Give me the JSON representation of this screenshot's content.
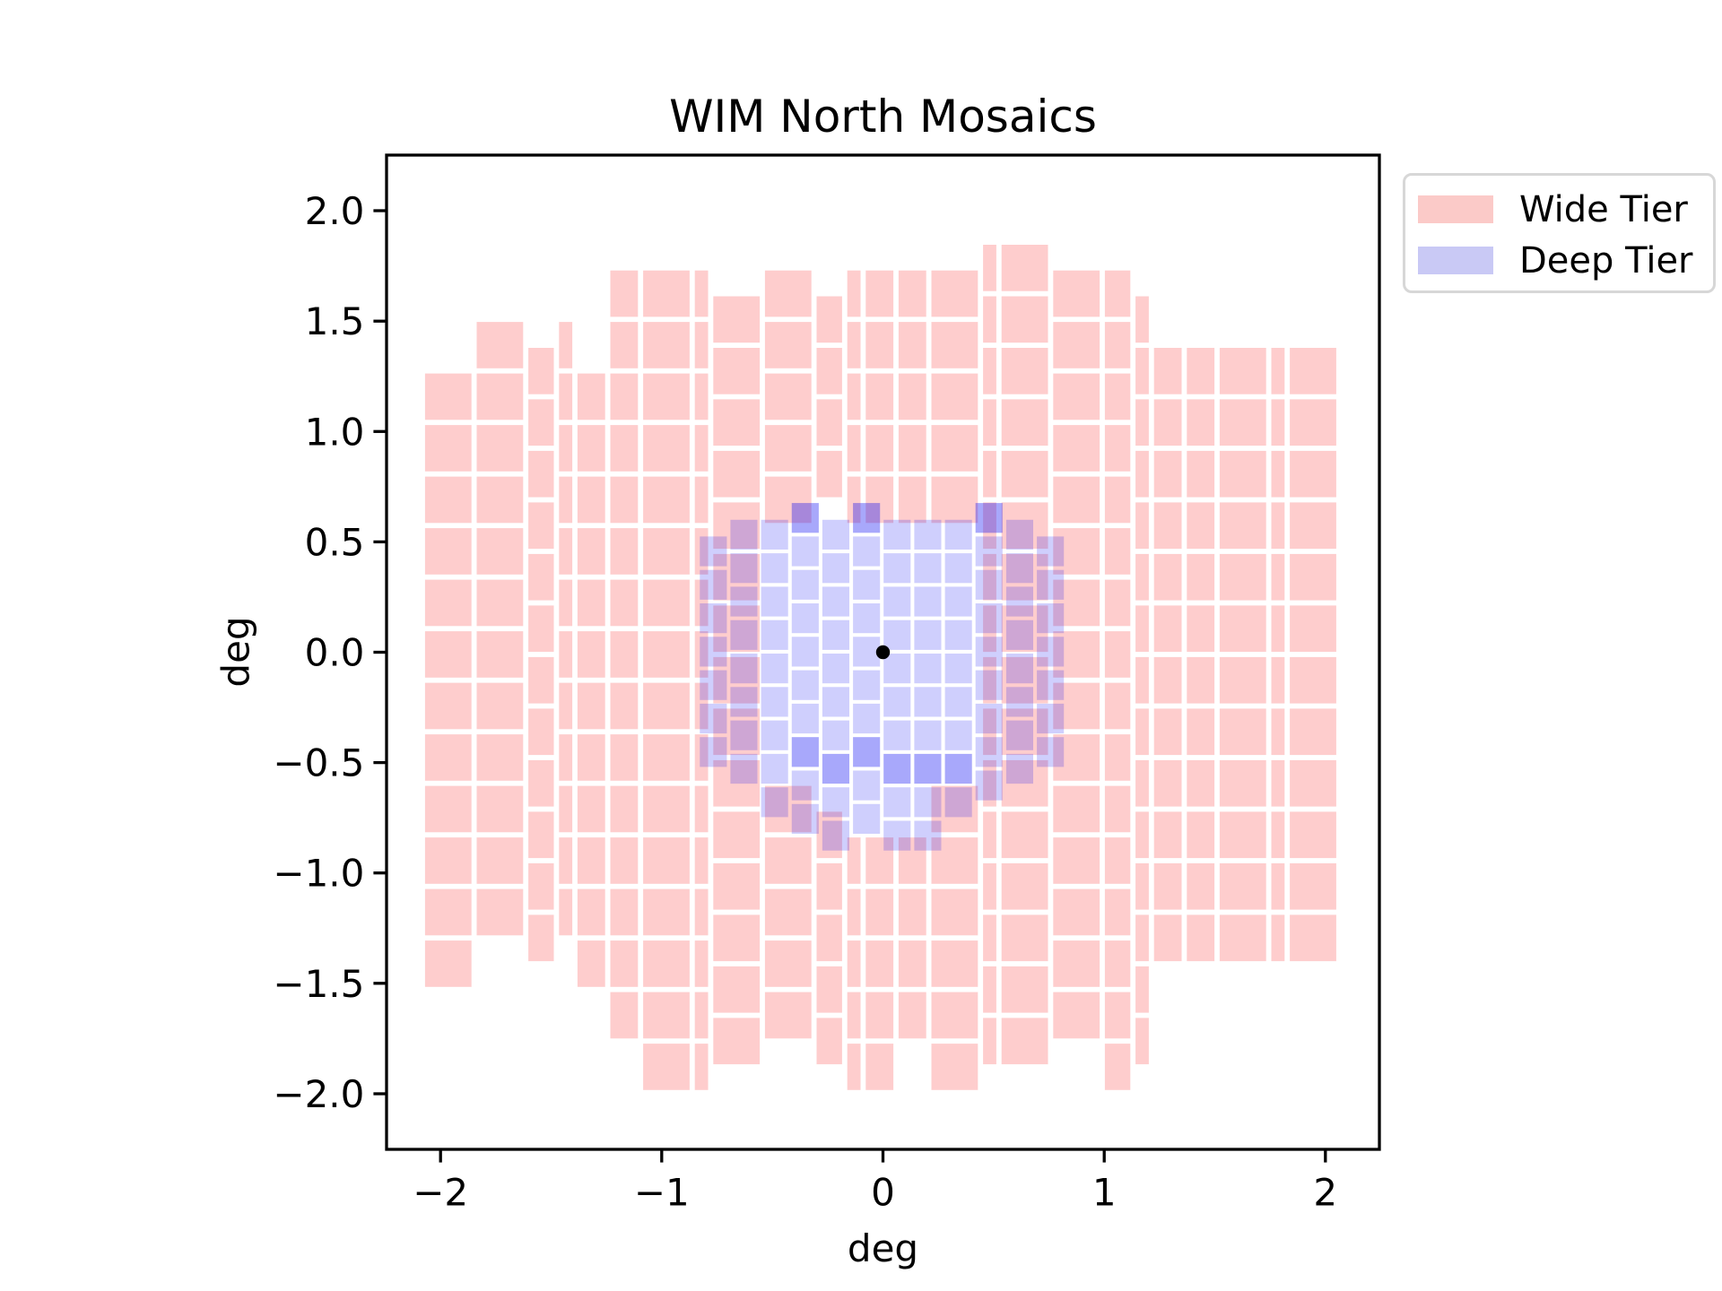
{
  "title": "WIM North Mosaics",
  "axes": {
    "xlabel": "deg",
    "ylabel": "deg",
    "xlim": [
      -2.244,
      2.244
    ],
    "ylim": [
      -2.252,
      2.252
    ],
    "xticks": [
      {
        "value": -2,
        "label": "−2"
      },
      {
        "value": -1,
        "label": "−1"
      },
      {
        "value": 0,
        "label": "0"
      },
      {
        "value": 1,
        "label": "1"
      },
      {
        "value": 2,
        "label": "2"
      }
    ],
    "yticks": [
      {
        "value": 2.0,
        "label": "2.0"
      },
      {
        "value": 1.5,
        "label": "1.5"
      },
      {
        "value": 1.0,
        "label": "1.0"
      },
      {
        "value": 0.5,
        "label": "0.5"
      },
      {
        "value": 0.0,
        "label": "0.0"
      },
      {
        "value": -0.5,
        "label": "−0.5"
      },
      {
        "value": -1.0,
        "label": "−1.0"
      },
      {
        "value": -1.5,
        "label": "−1.5"
      },
      {
        "value": -2.0,
        "label": "−2.0"
      }
    ]
  },
  "legend": {
    "items": [
      {
        "label": "Wide Tier",
        "swatch": "#fbcac8"
      },
      {
        "label": "Deep Tier",
        "swatch": "#c9c9f5"
      }
    ]
  },
  "chart_data": {
    "type": "heatmap",
    "description": "Sky-coverage mosaic map of survey pointings. Semi-transparent pink tiles show the Wide Tier footprint (roughly x,y in [-2.07,2.07] x [-1.9,1.8] deg with scalloped tile edges and a central gap), semi-transparent blue tiles show the Deep Tier footprint (x in [-0.83,0.83], y from about -0.95 up to 0.72 deg with a tapered bottom). Overlap of blue over pink renders purple; double blue coverage renders vivid blue stripes near y=-0.5.",
    "title": "WIM North Mosaics",
    "xlabel": "deg",
    "ylabel": "deg",
    "center_marker": {
      "x": 0,
      "y": 0,
      "color": "#000000",
      "radius_px": 7.7
    },
    "wide_tier": {
      "label": "Wide Tier",
      "fill": "rgba(250,25,25,0.215)",
      "x_start": -2.07,
      "x_end": 2.05,
      "column_patterns": [
        [
          0.21,
          0.21,
          0.115,
          0.06
        ],
        [
          0.125,
          0.125,
          0.21,
          0.06
        ]
      ],
      "gap": 0.0235,
      "tile_height": 0.21,
      "row_pitch": 0.2335,
      "row_origin": -2.1,
      "jitter_amp": 0.16,
      "half_phase": 0.117,
      "inner_half_width": 1.26,
      "top_inner": 1.84,
      "top_outer": 1.47,
      "bottom_inner": -1.94,
      "bottom_outer": -1.52,
      "hole": {
        "half_width": 0.44,
        "y_min": -0.6,
        "y_max": 0.55,
        "ear_x_min": 0.14,
        "ear_x_max": 0.36,
        "ear_y_max": 0.64,
        "tongue_half_width": 0.22,
        "tongue_y_min": -0.86
      }
    },
    "deep_tier": {
      "label": "Deep Tier",
      "fill": "rgba(10,10,245,0.195)",
      "x_start": -0.828,
      "columns": 12,
      "tile_width": 0.122,
      "gap": 0.0165,
      "tile_height": 0.135,
      "row_pitch": 0.1515,
      "row_origin": -1.05,
      "jitter_amp": 0.09,
      "half_phase": 0.076,
      "top_base": 0.72,
      "top_curve": 0.1,
      "bottom_base": -0.945,
      "bottom_curve": 0.46,
      "curve_ref": 0.83,
      "double_bands": [
        {
          "y_min": -0.57,
          "y_max": -0.4,
          "x_max": 0.47
        },
        {
          "y_min": 0.55,
          "y_max": 0.73,
          "x_max": 0.9
        }
      ]
    }
  }
}
